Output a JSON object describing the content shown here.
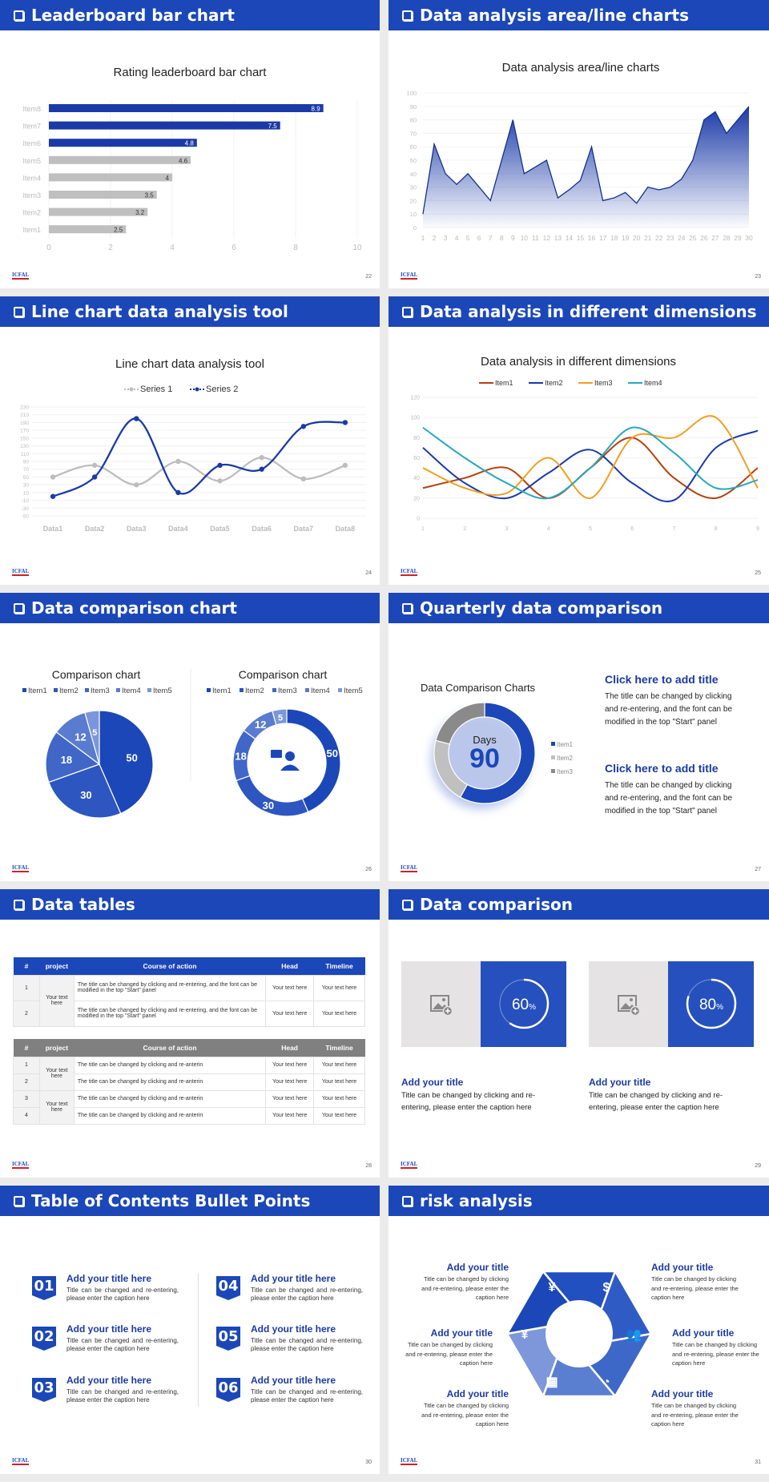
{
  "logo_text": "ICFAL",
  "colors": {
    "brand": "#1b47b8",
    "title_text": "#1b3aa0",
    "gray_bar": "#bfbfbf"
  },
  "slides": [
    {
      "header": "Leaderboard bar chart",
      "page": "22"
    },
    {
      "header": "Data analysis area/line charts",
      "page": "23"
    },
    {
      "header": "Line chart data analysis tool",
      "page": "24"
    },
    {
      "header": "Data analysis in different dimensions",
      "page": "25"
    },
    {
      "header": "Data comparison chart",
      "page": "26"
    },
    {
      "header": "Quarterly data comparison",
      "page": "27"
    },
    {
      "header": "Data tables",
      "page": "28"
    },
    {
      "header": "Data comparison",
      "page": "29"
    },
    {
      "header": "Table of Contents Bullet Points",
      "page": "30"
    },
    {
      "header": "risk analysis",
      "page": "31"
    }
  ],
  "chart_data": [
    {
      "type": "bar",
      "orientation": "horizontal",
      "title": "Rating leaderboard bar chart",
      "categories": [
        "Item1",
        "Item2",
        "Item3",
        "Item4",
        "Item5",
        "Item6",
        "Item7",
        "Item8"
      ],
      "values": [
        2.5,
        3.2,
        3.5,
        4,
        4.6,
        4.8,
        7.5,
        8.9
      ],
      "highlight": [
        "Item6",
        "Item7",
        "Item8"
      ],
      "highlight_color": "#1b3aa8",
      "xlim": [
        0,
        10
      ],
      "xticks": [
        0,
        2,
        4,
        6,
        8,
        10
      ],
      "grid": true
    },
    {
      "type": "area",
      "title": "Data analysis area/line charts",
      "x": [
        1,
        2,
        3,
        4,
        5,
        6,
        7,
        8,
        9,
        10,
        11,
        12,
        13,
        14,
        15,
        16,
        17,
        18,
        19,
        20,
        21,
        22,
        23,
        24,
        25,
        26,
        27,
        28,
        29,
        30
      ],
      "values": [
        10,
        62,
        40,
        32,
        40,
        30,
        20,
        50,
        80,
        40,
        45,
        50,
        22,
        28,
        35,
        60,
        20,
        22,
        26,
        18,
        30,
        28,
        30,
        36,
        50,
        80,
        86,
        70,
        80,
        90
      ],
      "ylim": [
        0,
        100
      ],
      "yticks": [
        0,
        10,
        20,
        30,
        40,
        50,
        60,
        70,
        80,
        90,
        100
      ],
      "color": "#1b3aa8"
    },
    {
      "type": "line",
      "smooth": true,
      "title": "Line chart data analysis tool",
      "categories": [
        "Data1",
        "Data2",
        "Data3",
        "Data4",
        "Data5",
        "Data6",
        "Data7",
        "Data8"
      ],
      "series": [
        {
          "name": "Series 1",
          "values": [
            50,
            80,
            30,
            90,
            40,
            100,
            45,
            80
          ],
          "color": "#bdbdbd"
        },
        {
          "name": "Series 2",
          "values": [
            0,
            50,
            200,
            10,
            80,
            70,
            180,
            190
          ],
          "color": "#1a3aa8"
        }
      ],
      "ylim": [
        -50,
        230
      ],
      "yticks": [
        -50,
        -30,
        -10,
        10,
        30,
        50,
        70,
        90,
        110,
        130,
        150,
        170,
        190,
        210,
        230
      ],
      "legend": "top"
    },
    {
      "type": "line",
      "smooth": true,
      "title": "Data analysis in different dimensions",
      "x": [
        1,
        2,
        3,
        4,
        5,
        6,
        7,
        8,
        9
      ],
      "series": [
        {
          "name": "Item1",
          "values": [
            30,
            40,
            50,
            20,
            50,
            80,
            40,
            20,
            50
          ],
          "color": "#b5400f"
        },
        {
          "name": "Item2",
          "values": [
            70,
            35,
            20,
            45,
            68,
            35,
            18,
            70,
            87
          ],
          "color": "#1a3aa8"
        },
        {
          "name": "Item3",
          "values": [
            50,
            30,
            25,
            60,
            20,
            80,
            80,
            100,
            30
          ],
          "color": "#f0a020"
        },
        {
          "name": "Item4",
          "values": [
            90,
            60,
            35,
            20,
            50,
            90,
            65,
            30,
            38
          ],
          "color": "#27a8c0"
        }
      ],
      "ylim": [
        0,
        120
      ],
      "yticks": [
        0,
        20,
        40,
        60,
        80,
        100,
        120
      ],
      "legend": "top"
    },
    {
      "type": "pie",
      "title": "Comparison chart",
      "categories": [
        "Item1",
        "Item2",
        "Item3",
        "Item4",
        "Item5"
      ],
      "values": [
        50,
        30,
        18,
        12,
        5
      ],
      "colors": [
        "#1b47b8",
        "#2d56c0",
        "#4066c8",
        "#5a7cd0",
        "#7b96da"
      ],
      "legend": "top"
    },
    {
      "type": "donut",
      "title": "Comparison chart",
      "categories": [
        "Item1",
        "Item2",
        "Item3",
        "Item4",
        "Item5"
      ],
      "values": [
        50,
        30,
        18,
        12,
        5
      ],
      "colors": [
        "#1b47b8",
        "#2d56c0",
        "#4066c8",
        "#5a7cd0",
        "#7b96da"
      ],
      "legend": "top",
      "center_icon": "support-agent-icon"
    },
    {
      "type": "donut",
      "title": "Data Comparison Charts",
      "categories": [
        "Item1",
        "Item2",
        "Item3"
      ],
      "values": [
        58,
        21,
        21
      ],
      "colors": [
        "#1b47b8",
        "#c0c0c0",
        "#8a8a8a"
      ],
      "legend": "right",
      "center_label": "Days",
      "center_value": "90"
    }
  ],
  "quarterly": {
    "blocks": [
      {
        "title": "Click here to add title",
        "desc": "The title can be changed by clicking and re-entering, and the font can be modified in the top \"Start\" panel"
      },
      {
        "title": "Click here to add title",
        "desc": "The title can be changed by clicking and re-entering, and the font can be modified in the top \"Start\" panel"
      }
    ]
  },
  "tables": {
    "columns": [
      "#",
      "project",
      "Course of action",
      "Head",
      "Timeline"
    ],
    "table1": {
      "header_color": "#1b47b8",
      "rows": [
        {
          "num": "1",
          "project": "Your text here",
          "span": 2,
          "course": "The title can be changed by clicking and re-entering, and the font can be modified in the top \"Start\" panel",
          "head": "Your text here",
          "timeline": "Your text here"
        },
        {
          "num": "2",
          "course": "The title can be changed by clicking and re-entering, and the font can be modified in the top \"Start\" panel",
          "head": "Your text here",
          "timeline": "Your text here"
        }
      ]
    },
    "table2": {
      "header_color": "#808080",
      "rows": [
        {
          "num": "1",
          "project": "Your text here",
          "span": 2,
          "course": "The title can be changed by clicking and re-anterin",
          "head": "Your text here",
          "timeline": "Your text here"
        },
        {
          "num": "2",
          "course": "The title can be changed by clicking and re-anterin",
          "head": "Your text here",
          "timeline": "Your text here"
        },
        {
          "num": "3",
          "project": "Your text here",
          "span": 2,
          "course": "The title can be changed by clicking and re-anterin",
          "head": "Your text here",
          "timeline": "Your text here"
        },
        {
          "num": "4",
          "course": "The title can be changed by clicking and re-anterin",
          "head": "Your text here",
          "timeline": "Your text here"
        }
      ]
    }
  },
  "comparison": {
    "cards": [
      {
        "percent": 60,
        "value": "60",
        "unit": "%",
        "title": "Add your title",
        "desc": "Title can be changed by clicking and re-entering, please enter the caption here",
        "image_icon": "add-image-icon"
      },
      {
        "percent": 80,
        "value": "80",
        "unit": "%",
        "title": "Add your title",
        "desc": "Title can be changed by clicking and re-entering, please enter the caption here",
        "image_icon": "add-image-icon"
      }
    ]
  },
  "toc": {
    "items": [
      {
        "num": "01",
        "title": "Add your title here",
        "desc": "Title can be changed and re-entering, please enter the caption here"
      },
      {
        "num": "02",
        "title": "Add your title here",
        "desc": "Title can be changed and re-entering, please enter the caption here"
      },
      {
        "num": "03",
        "title": "Add your title here",
        "desc": "Title can be changed and re-entering, please enter the caption here"
      },
      {
        "num": "04",
        "title": "Add your title here",
        "desc": "Title can be changed and re-entering, please enter the caption here"
      },
      {
        "num": "05",
        "title": "Add your title here",
        "desc": "Title can be changed and re-entering, please enter the caption here"
      },
      {
        "num": "06",
        "title": "Add your title here",
        "desc": "Title can be changed and re-entering, please enter the caption here"
      }
    ]
  },
  "risk": {
    "items": [
      {
        "title": "Add your title",
        "desc": "Title can be changed by clicking and re-entering, please enter the caption here",
        "icon": "money-bag-icon"
      },
      {
        "title": "Add your title",
        "desc": "Title can be changed by clicking and re-entering, please enter the caption here",
        "icon": "coins-icon"
      },
      {
        "title": "Add your title",
        "desc": "Title can be changed by clicking and re-entering, please enter the caption here",
        "icon": "hand-money-icon"
      },
      {
        "title": "Add your title",
        "desc": "Title can be changed by clicking and re-entering, please enter the caption here",
        "icon": "users-icon"
      },
      {
        "title": "Add your title",
        "desc": "Title can be changed by clicking and re-entering, please enter the caption here",
        "icon": "buildings-icon"
      },
      {
        "title": "Add your title",
        "desc": "Title can be changed by clicking and re-entering, please enter the caption here",
        "icon": "pie-chart-icon"
      }
    ]
  }
}
